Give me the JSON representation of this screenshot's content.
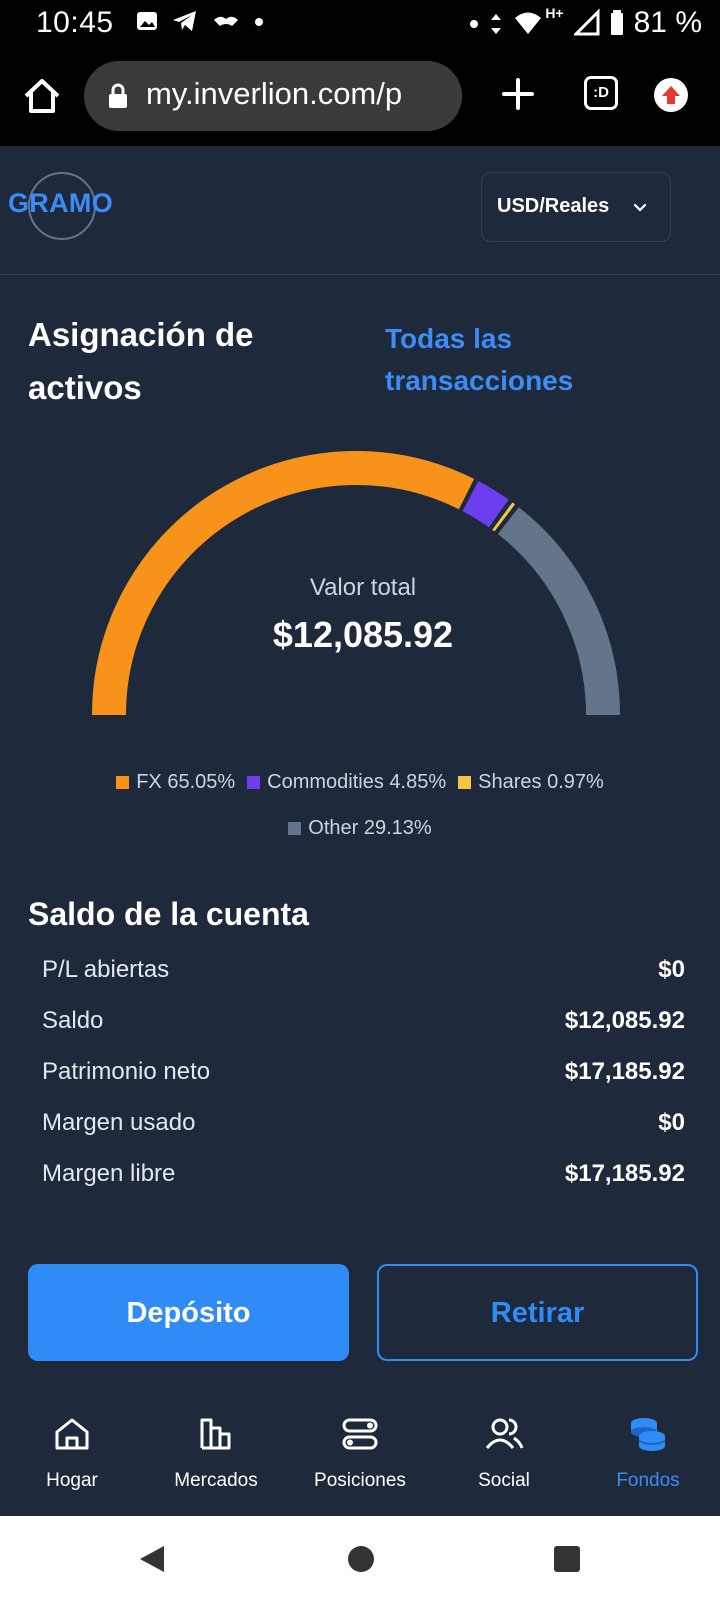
{
  "status_bar": {
    "time": "10:45",
    "network": "H+",
    "battery": "81 %"
  },
  "browser": {
    "url": "my.inverlion.com/p",
    "tab_count": ":D"
  },
  "header": {
    "logo": "GRAMO",
    "currency": "USD/Reales"
  },
  "allocation": {
    "title": "Asignación de activos",
    "all_transactions": "Todas las transacciones",
    "total_label": "Valor total",
    "total_value": "$12,085.92"
  },
  "chart_data": {
    "type": "pie",
    "shape": "semicircle-donut",
    "categories": [
      "FX",
      "Commodities",
      "Shares",
      "Other"
    ],
    "values": [
      65.05,
      4.85,
      0.97,
      29.13
    ],
    "colors": [
      "#f7931a",
      "#6d3ef0",
      "#f5c542",
      "#64748b"
    ],
    "legend": [
      "FX 65.05%",
      "Commodities 4.85%",
      "Shares 0.97%",
      "Other 29.13%"
    ]
  },
  "balance": {
    "title": "Saldo de la cuenta",
    "rows": [
      {
        "label": "P/L abiertas",
        "value": "$0"
      },
      {
        "label": "Saldo",
        "value": "$12,085.92"
      },
      {
        "label": "Patrimonio neto",
        "value": "$17,185.92"
      },
      {
        "label": "Margen usado",
        "value": "$0"
      },
      {
        "label": "Margen libre",
        "value": "$17,185.92"
      }
    ]
  },
  "actions": {
    "deposit": "Depósito",
    "withdraw": "Retirar"
  },
  "nav": {
    "items": [
      {
        "label": "Hogar",
        "icon": "home-icon"
      },
      {
        "label": "Mercados",
        "icon": "markets-icon"
      },
      {
        "label": "Posiciones",
        "icon": "positions-icon"
      },
      {
        "label": "Social",
        "icon": "social-icon"
      },
      {
        "label": "Fondos",
        "icon": "funds-icon",
        "active": true
      }
    ]
  }
}
